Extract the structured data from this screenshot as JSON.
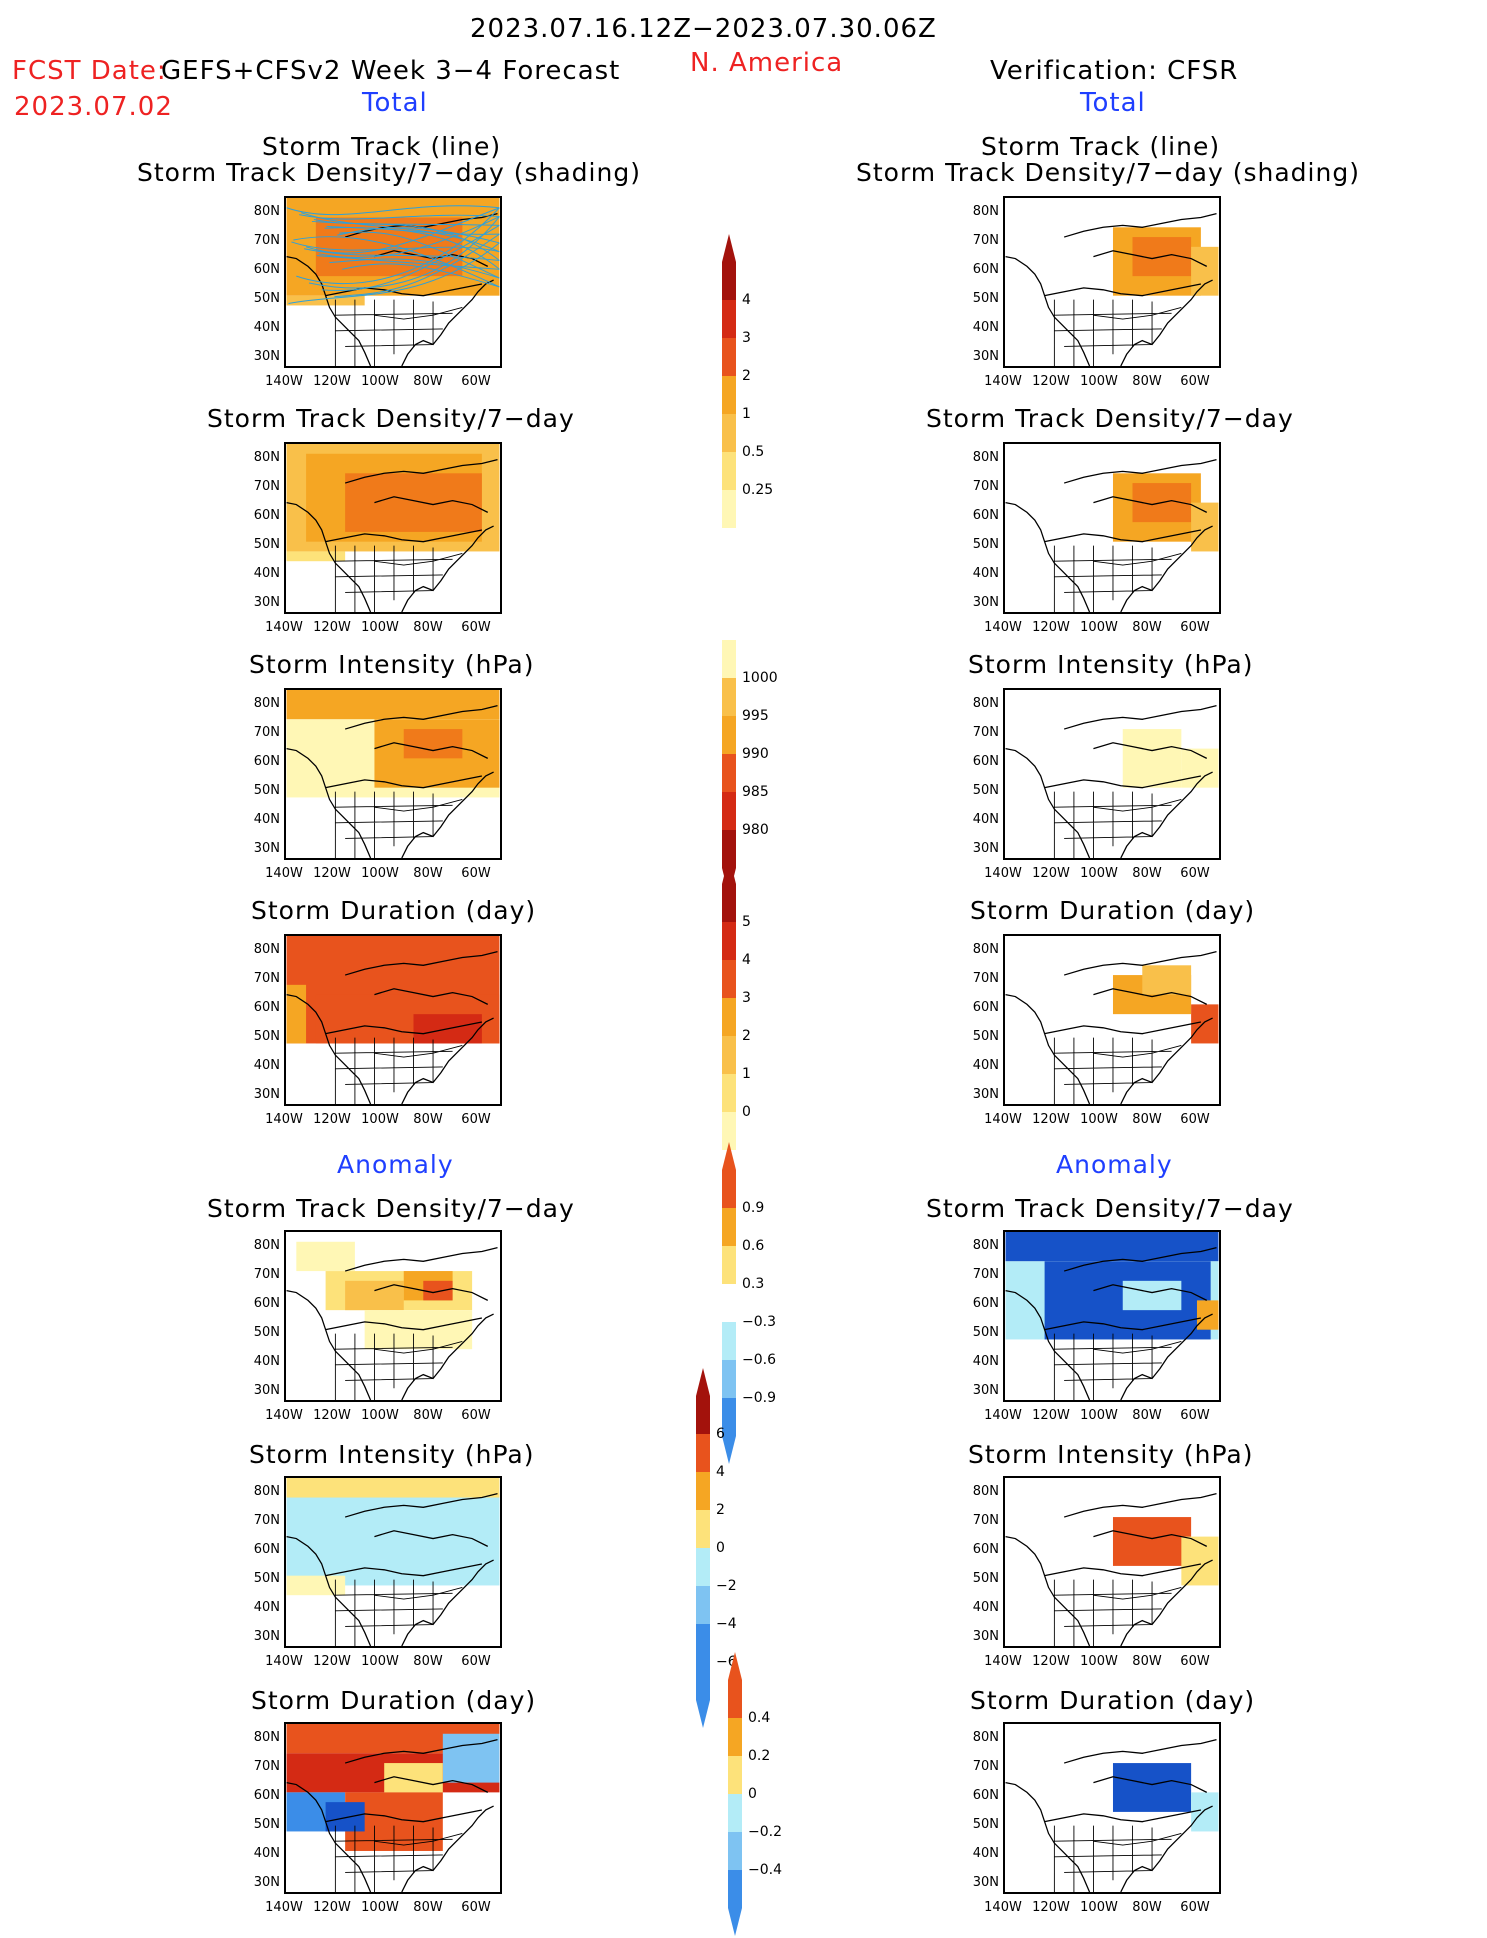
{
  "header": {
    "period": "2023.07.16.12Z−2023.07.30.06Z",
    "fcst_label": "FCST Date:",
    "model": "GEFS+CFSv2 Week 3−4 Forecast",
    "region": "N. America",
    "verification": "Verification: CFSR",
    "fcst_date": "2023.07.02",
    "total_left": "Total",
    "total_right": "Total",
    "anomaly_left": "Anomaly",
    "anomaly_right": "Anomaly"
  },
  "titles": {
    "track_line": "Storm Track (line)",
    "track_shading": "Storm Track Density/7−day (shading)",
    "density": "Storm Track Density/7−day",
    "intensity": "Storm Intensity (hPa)",
    "duration": "Storm Duration (day)"
  },
  "axes": {
    "lat_labels": [
      "80N",
      "70N",
      "60N",
      "50N",
      "40N",
      "30N"
    ],
    "lon_labels": [
      "140W",
      "120W",
      "100W",
      "80W",
      "60W"
    ]
  },
  "colorbars": {
    "density_total": [
      "4",
      "3",
      "2",
      "1",
      "0.5",
      "0.25"
    ],
    "intensity_total": [
      "1000",
      "995",
      "990",
      "985",
      "980"
    ],
    "duration_total": [
      "5",
      "4",
      "3",
      "2",
      "1",
      "0"
    ],
    "density_anom": [
      "0.9",
      "0.6",
      "0.3",
      "−0.3",
      "−0.6",
      "−0.9"
    ],
    "intensity_anom": [
      "6",
      "4",
      "2",
      "0",
      "−2",
      "−4",
      "−6"
    ],
    "duration_anom": [
      "0.4",
      "0.2",
      "0",
      "−0.2",
      "−0.4"
    ]
  },
  "colors": {
    "pale_yellow": "#fff7b5",
    "light_yellow": "#fde27a",
    "orange_light": "#f9c04a",
    "orange": "#f5a623",
    "orange_dark": "#f07a1a",
    "red_orange": "#e8531d",
    "red": "#d42a14",
    "dark_red": "#a3120c",
    "light_blue": "#b3ecf7",
    "blue_light": "#7ec3f2",
    "blue": "#3b8de8",
    "dark_blue": "#1652c8",
    "track_line": "#2fa0d8"
  }
}
